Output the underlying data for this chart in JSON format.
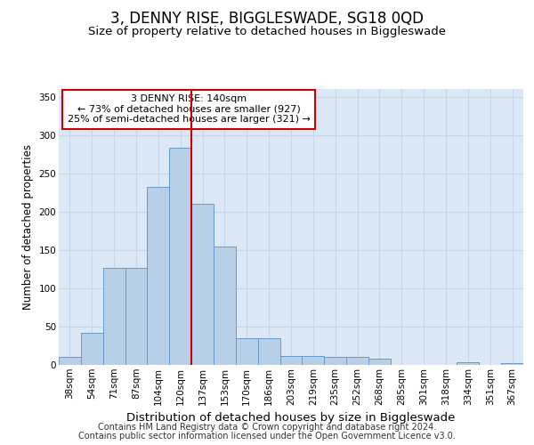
{
  "title": "3, DENNY RISE, BIGGLESWADE, SG18 0QD",
  "subtitle": "Size of property relative to detached houses in Biggleswade",
  "xlabel": "Distribution of detached houses by size in Biggleswade",
  "ylabel": "Number of detached properties",
  "categories": [
    "38sqm",
    "54sqm",
    "71sqm",
    "87sqm",
    "104sqm",
    "120sqm",
    "137sqm",
    "153sqm",
    "170sqm",
    "186sqm",
    "203sqm",
    "219sqm",
    "235sqm",
    "252sqm",
    "268sqm",
    "285sqm",
    "301sqm",
    "318sqm",
    "334sqm",
    "351sqm",
    "367sqm"
  ],
  "values": [
    10,
    42,
    127,
    127,
    232,
    283,
    210,
    155,
    35,
    35,
    12,
    12,
    10,
    10,
    8,
    0,
    0,
    0,
    3,
    0,
    2
  ],
  "bar_color": "#b8cfe8",
  "bar_edge_color": "#6699cc",
  "vline_x": 5.5,
  "vline_color": "#cc0000",
  "annotation_text": "3 DENNY RISE: 140sqm\n← 73% of detached houses are smaller (927)\n25% of semi-detached houses are larger (321) →",
  "annotation_box_facecolor": "#ffffff",
  "annotation_box_edgecolor": "#cc0000",
  "grid_color": "#c8d4e8",
  "background_color": "#dce8f5",
  "footer_line1": "Contains HM Land Registry data © Crown copyright and database right 2024.",
  "footer_line2": "Contains public sector information licensed under the Open Government Licence v3.0.",
  "ylim": [
    0,
    360
  ],
  "yticks": [
    0,
    50,
    100,
    150,
    200,
    250,
    300,
    350
  ],
  "title_fontsize": 12,
  "subtitle_fontsize": 9.5,
  "xlabel_fontsize": 9.5,
  "ylabel_fontsize": 8.5,
  "tick_fontsize": 7.5,
  "annotation_fontsize": 8,
  "footer_fontsize": 7
}
